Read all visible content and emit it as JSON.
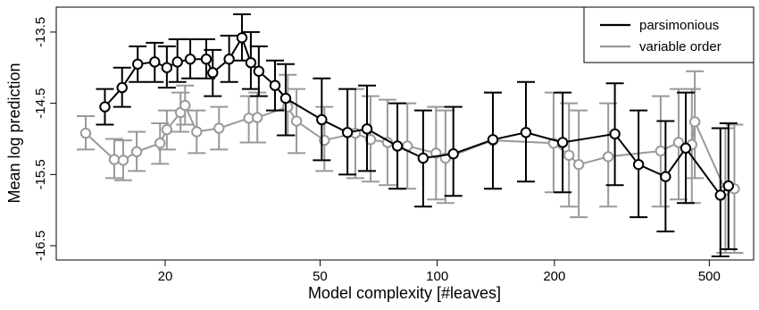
{
  "chart_data": {
    "type": "line",
    "title": "",
    "xlabel": "Model complexity [#leaves]",
    "ylabel": "Mean log prediction",
    "x_scale": "log",
    "xlim": [
      10.5,
      650
    ],
    "ylim": [
      -16.7,
      -13.15
    ],
    "x_ticks": [
      20,
      50,
      100,
      200,
      500
    ],
    "y_ticks": [
      -13.5,
      -14.5,
      -15.5,
      -16.5
    ],
    "legend_position": "top-right",
    "series": [
      {
        "name": "parsimonious",
        "color": "#000000",
        "points": [
          {
            "x": 14,
            "y": -14.55,
            "lo": -14.8,
            "hi": -14.3
          },
          {
            "x": 15.5,
            "y": -14.28,
            "lo": -14.55,
            "hi": -14.0
          },
          {
            "x": 17,
            "y": -13.95,
            "lo": -14.2,
            "hi": -13.7
          },
          {
            "x": 18.8,
            "y": -13.92,
            "lo": -14.2,
            "hi": -13.65
          },
          {
            "x": 20.2,
            "y": -14.0,
            "lo": -14.28,
            "hi": -13.7
          },
          {
            "x": 21.5,
            "y": -13.92,
            "lo": -14.2,
            "hi": -13.6
          },
          {
            "x": 23.2,
            "y": -13.88,
            "lo": -14.15,
            "hi": -13.6
          },
          {
            "x": 25.5,
            "y": -13.88,
            "lo": -14.15,
            "hi": -13.6
          },
          {
            "x": 26.5,
            "y": -14.07,
            "lo": -14.4,
            "hi": -13.75
          },
          {
            "x": 29.2,
            "y": -13.88,
            "lo": -14.2,
            "hi": -13.55
          },
          {
            "x": 31.5,
            "y": -13.58,
            "lo": -13.9,
            "hi": -13.25
          },
          {
            "x": 33.2,
            "y": -13.93,
            "lo": -14.3,
            "hi": -13.5
          },
          {
            "x": 34.8,
            "y": -14.05,
            "lo": -14.4,
            "hi": -13.7
          },
          {
            "x": 38.3,
            "y": -14.25,
            "lo": -14.6,
            "hi": -13.9
          },
          {
            "x": 40.8,
            "y": -14.43,
            "lo": -14.95,
            "hi": -13.95
          },
          {
            "x": 50.5,
            "y": -14.73,
            "lo": -15.3,
            "hi": -14.15
          },
          {
            "x": 58.8,
            "y": -14.91,
            "lo": -15.5,
            "hi": -14.3
          },
          {
            "x": 66,
            "y": -14.86,
            "lo": -15.45,
            "hi": -14.25
          },
          {
            "x": 79,
            "y": -15.1,
            "lo": -15.7,
            "hi": -14.5
          },
          {
            "x": 92,
            "y": -15.27,
            "lo": -15.95,
            "hi": -14.6
          },
          {
            "x": 110,
            "y": -15.21,
            "lo": -15.8,
            "hi": -14.55
          },
          {
            "x": 139,
            "y": -15.01,
            "lo": -15.7,
            "hi": -14.35
          },
          {
            "x": 169,
            "y": -14.91,
            "lo": -15.6,
            "hi": -14.2
          },
          {
            "x": 210,
            "y": -15.05,
            "lo": -15.75,
            "hi": -14.35
          },
          {
            "x": 286,
            "y": -14.93,
            "lo": -15.65,
            "hi": -14.22
          },
          {
            "x": 329,
            "y": -15.36,
            "lo": -16.1,
            "hi": -14.6
          },
          {
            "x": 386,
            "y": -15.53,
            "lo": -16.3,
            "hi": -14.75
          },
          {
            "x": 435,
            "y": -15.13,
            "lo": -15.9,
            "hi": -14.35
          },
          {
            "x": 534,
            "y": -15.79,
            "lo": -16.65,
            "hi": -14.85
          },
          {
            "x": 560,
            "y": -15.66,
            "lo": -16.55,
            "hi": -14.78
          }
        ]
      },
      {
        "name": "variable order",
        "color": "#999999",
        "points": [
          {
            "x": 12.5,
            "y": -14.92,
            "lo": -15.15,
            "hi": -14.68
          },
          {
            "x": 14.8,
            "y": -15.29,
            "lo": -15.55,
            "hi": -15.0
          },
          {
            "x": 15.6,
            "y": -15.3,
            "lo": -15.58,
            "hi": -15.02
          },
          {
            "x": 16.9,
            "y": -15.18,
            "lo": -15.45,
            "hi": -14.9
          },
          {
            "x": 19.4,
            "y": -15.06,
            "lo": -15.35,
            "hi": -14.78
          },
          {
            "x": 20.2,
            "y": -14.87,
            "lo": -15.15,
            "hi": -14.6
          },
          {
            "x": 21.9,
            "y": -14.63,
            "lo": -14.9,
            "hi": -14.35
          },
          {
            "x": 22.5,
            "y": -14.53,
            "lo": -14.8,
            "hi": -14.25
          },
          {
            "x": 24.1,
            "y": -14.9,
            "lo": -15.2,
            "hi": -14.6
          },
          {
            "x": 27.5,
            "y": -14.85,
            "lo": -15.15,
            "hi": -14.55
          },
          {
            "x": 32.8,
            "y": -14.71,
            "lo": -15.05,
            "hi": -14.4
          },
          {
            "x": 34.5,
            "y": -14.7,
            "lo": -15.05,
            "hi": -14.35
          },
          {
            "x": 41.3,
            "y": -14.55,
            "lo": -14.95,
            "hi": -14.1
          },
          {
            "x": 43.5,
            "y": -14.75,
            "lo": -15.2,
            "hi": -14.3
          },
          {
            "x": 51.3,
            "y": -15.02,
            "lo": -15.45,
            "hi": -14.55
          },
          {
            "x": 61.6,
            "y": -14.92,
            "lo": -15.55,
            "hi": -14.3
          },
          {
            "x": 67.4,
            "y": -15.01,
            "lo": -15.6,
            "hi": -14.4
          },
          {
            "x": 74.5,
            "y": -15.05,
            "lo": -15.65,
            "hi": -14.45
          },
          {
            "x": 83.8,
            "y": -15.1,
            "lo": -15.7,
            "hi": -14.5
          },
          {
            "x": 99.3,
            "y": -15.2,
            "lo": -15.85,
            "hi": -14.55
          },
          {
            "x": 105,
            "y": -15.27,
            "lo": -15.9,
            "hi": -14.6
          },
          {
            "x": 139,
            "y": -15.02,
            "lo": -15.7,
            "hi": -14.35
          },
          {
            "x": 199,
            "y": -15.06,
            "lo": -15.75,
            "hi": -14.35
          },
          {
            "x": 218,
            "y": -15.23,
            "lo": -15.95,
            "hi": -14.5
          },
          {
            "x": 231,
            "y": -15.36,
            "lo": -16.1,
            "hi": -14.6
          },
          {
            "x": 275,
            "y": -15.25,
            "lo": -15.95,
            "hi": -14.5
          },
          {
            "x": 375,
            "y": -15.17,
            "lo": -15.95,
            "hi": -14.4
          },
          {
            "x": 417,
            "y": -15.05,
            "lo": -15.85,
            "hi": -14.3
          },
          {
            "x": 451,
            "y": -15.08,
            "lo": -15.9,
            "hi": -14.3
          },
          {
            "x": 459,
            "y": -14.76,
            "lo": -15.55,
            "hi": -14.05
          },
          {
            "x": 550,
            "y": -15.72,
            "lo": -16.6,
            "hi": -14.85
          },
          {
            "x": 580,
            "y": -15.7,
            "lo": -16.6,
            "hi": -14.8
          }
        ]
      }
    ]
  }
}
